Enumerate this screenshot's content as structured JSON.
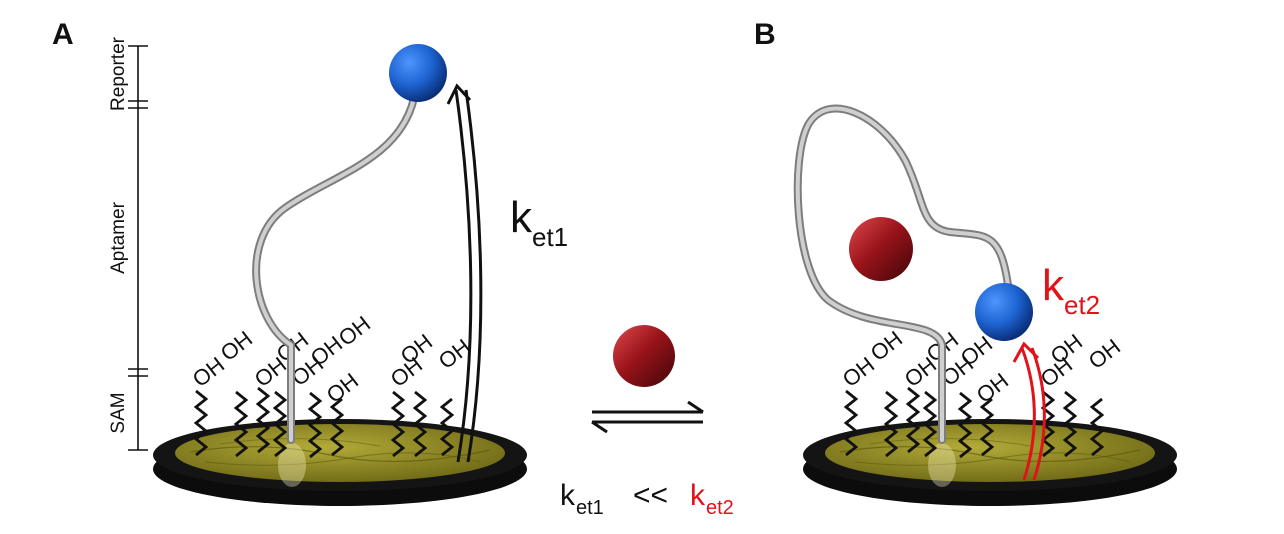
{
  "panels": {
    "a": {
      "label": "A"
    },
    "b": {
      "label": "B"
    }
  },
  "scale_labels": {
    "reporter": "Reporter",
    "aptamer": "Aptamer",
    "sam": "SAM"
  },
  "oh_label": "OH",
  "rates": {
    "a": {
      "k": "k",
      "sub": "et1"
    },
    "b": {
      "k": "k",
      "sub": "et2"
    }
  },
  "comparison": {
    "left_k": "k",
    "left_sub": "et1",
    "operator": "<<",
    "right_k": "k",
    "right_sub": "et2"
  },
  "colors": {
    "reporter": "#1e64d2",
    "target": "#8c0f14",
    "gold_surface": "#8c8420",
    "disc_rim": "#111111",
    "strand": "#a8a8a8",
    "rate_a": "#111111",
    "rate_b": "#e0121a"
  }
}
